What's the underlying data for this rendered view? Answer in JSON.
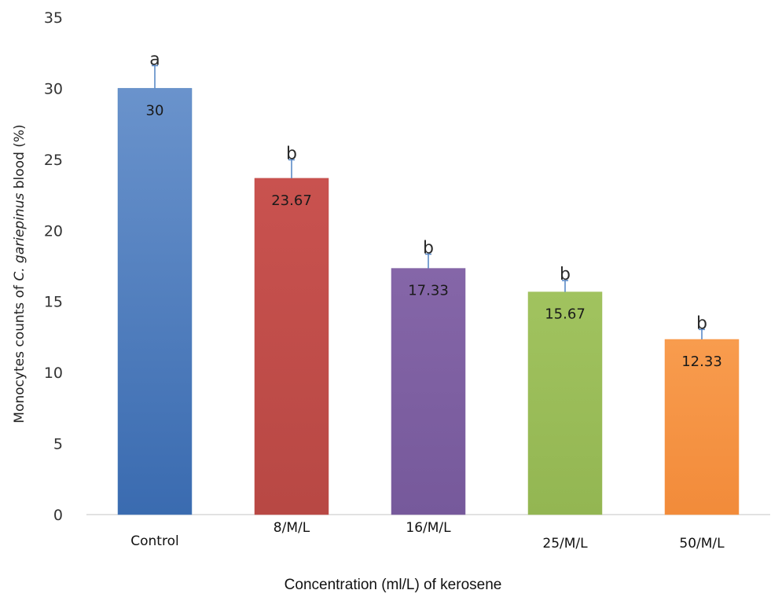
{
  "chart_data": {
    "type": "bar",
    "title": "",
    "xlabel": "Concentration (ml/L) of kerosene",
    "ylabel_parts": [
      "Monocytes counts of ",
      "C. gariepinus",
      " blood (%)"
    ],
    "categories": [
      "Control",
      "8/M/L",
      "16/M/L",
      "25/M/L",
      "50/M/L"
    ],
    "values": [
      30,
      23.67,
      17.33,
      15.67,
      12.33
    ],
    "value_labels": [
      "30",
      "23.67",
      "17.33",
      "15.67",
      "12.33"
    ],
    "significance": [
      "a",
      "b",
      "b",
      "b",
      "b"
    ],
    "errors": [
      1.6,
      1.3,
      1.0,
      0.8,
      0.7
    ],
    "colors": [
      "#4f81bd",
      "#c0504d",
      "#8064a2",
      "#9bbb59",
      "#f79646"
    ],
    "yticks": [
      0,
      5,
      10,
      15,
      20,
      25,
      30,
      35
    ],
    "ylim": [
      0,
      35
    ],
    "grid": false,
    "legend": "none"
  }
}
